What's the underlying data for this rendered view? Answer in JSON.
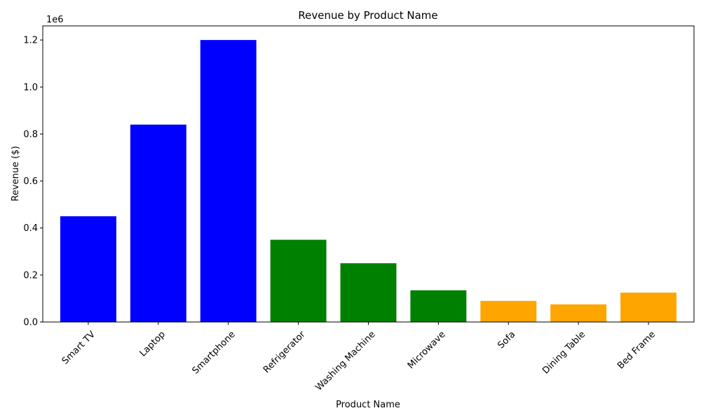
{
  "chart_data": {
    "type": "bar",
    "title": "Revenue by Product Name",
    "xlabel": "Product Name",
    "ylabel": "Revenue ($)",
    "y_scale_label": "1e6",
    "ylim": [
      0,
      1260000
    ],
    "y_ticks": [
      0,
      200000,
      400000,
      600000,
      800000,
      1000000,
      1200000
    ],
    "y_tick_labels": [
      "0.0",
      "0.2",
      "0.4",
      "0.6",
      "0.8",
      "1.0",
      "1.2"
    ],
    "grid": false,
    "categories": [
      "Smart TV",
      "Laptop",
      "Smartphone",
      "Refrigerator",
      "Washing Machine",
      "Microwave",
      "Sofa",
      "Dining Table",
      "Bed Frame"
    ],
    "values": [
      450000,
      840000,
      1200000,
      350000,
      250000,
      135000,
      90000,
      75000,
      125000
    ],
    "bar_colors": [
      "#0000ff",
      "#0000ff",
      "#0000ff",
      "#008000",
      "#008000",
      "#008000",
      "#ffa500",
      "#ffa500",
      "#ffa500"
    ]
  }
}
